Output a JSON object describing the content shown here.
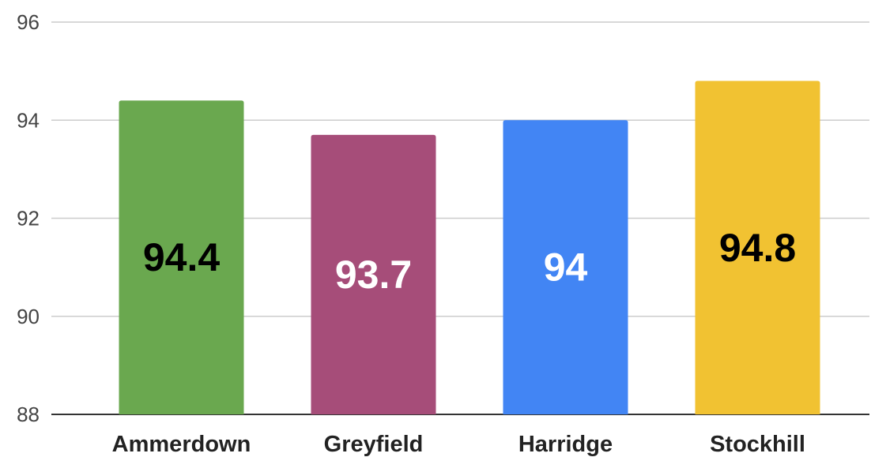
{
  "chart_data": {
    "type": "bar",
    "categories": [
      "Ammerdown",
      "Greyfield",
      "Harridge",
      "Stockhill"
    ],
    "values": [
      94.4,
      93.7,
      94,
      94.8
    ],
    "data_labels": [
      "94.4",
      "93.7",
      "94",
      "94.8"
    ],
    "colors": [
      "#6aa84f",
      "#a64d79",
      "#4285f4",
      "#f1c232"
    ],
    "label_colors": [
      "#000000",
      "#ffffff",
      "#ffffff",
      "#000000"
    ],
    "ylim": [
      88,
      96
    ],
    "yticks": [
      88,
      90,
      92,
      94,
      96
    ],
    "ytick_labels": [
      "88",
      "90",
      "92",
      "94",
      "96"
    ],
    "grid": true,
    "legend": "none"
  }
}
